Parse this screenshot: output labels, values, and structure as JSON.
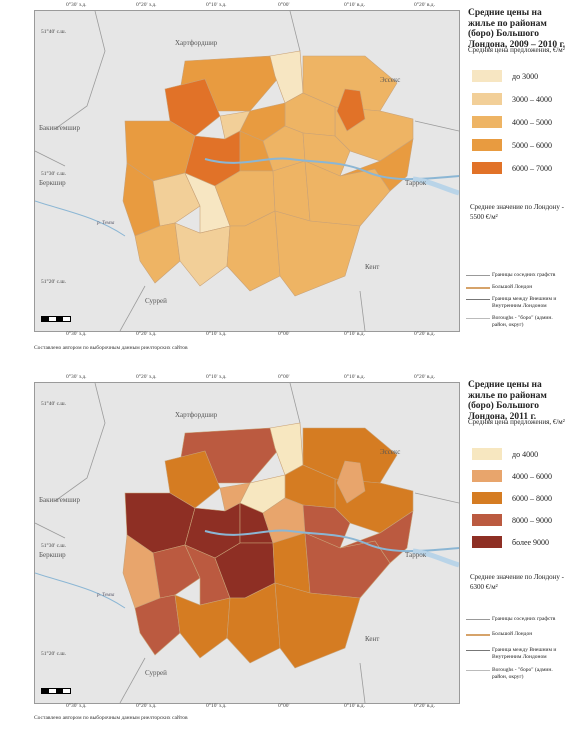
{
  "axes": {
    "top_labels": [
      "0°30' з.д.",
      "0°20' з.д.",
      "0°10' з.д.",
      "0°00'",
      "0°10' в.д.",
      "0°20' в.д."
    ],
    "left_labels_p1": [
      "51°40' с.ш.",
      "51°30' с.ш.",
      "51°20' с.ш."
    ],
    "left_labels_p2": [
      "51°40' с.ш.",
      "51°30' с.ш.",
      "51°20' с.ш."
    ]
  },
  "regions": {
    "hertfordshire": "Хартфордшир",
    "essex": "Эссекс",
    "buckinghamshire": "Бакингемшир",
    "berkshire": "Беркшир",
    "surrey": "Суррей",
    "kent": "Кент",
    "thurrock": "Таррок",
    "thames": "р. Темза"
  },
  "map1": {
    "title": "Средние цены на жилье по районам (боро) Большого Лондона, 2009 – 2010 г.",
    "subtitle": "Средняя цена предложения, €/м²",
    "legend": [
      {
        "label": "до 3000",
        "color": "#f7e6c2"
      },
      {
        "label": "3000 – 4000",
        "color": "#f2cf98"
      },
      {
        "label": "4000 – 5000",
        "color": "#eeb464"
      },
      {
        "label": "5000 – 6000",
        "color": "#e89b40"
      },
      {
        "label": "6000 – 7000",
        "color": "#e17228"
      }
    ],
    "average": "Среднее значение по Лондону - 5500 €/м²",
    "source": "Составлено автором по выборочным данным риелторских сайтов"
  },
  "map2": {
    "title": "Средние цены на жилье по районам (боро) Большого Лондона, 2011 г.",
    "subtitle": "Средняя цена предложения, €/м²",
    "legend": [
      {
        "label": "до 4000",
        "color": "#f7e7c0"
      },
      {
        "label": "4000 – 6000",
        "color": "#e8a56c"
      },
      {
        "label": "6000 – 8000",
        "color": "#d57c22"
      },
      {
        "label": "8000 – 9000",
        "color": "#bb5a40"
      },
      {
        "label": "более 9000",
        "color": "#8e2f24"
      }
    ],
    "average": "Среднее значение по Лондону - 6300 €/м²",
    "source": "Составлено автором по выборочным данным риелторских сайтов"
  },
  "line_legend": {
    "neighbors": "Границы соседних графств",
    "greater_london": "Большой Лондон",
    "inner_outer": "Граница между Внешним и Внутренним Лондоном",
    "boroughs": "Boroughs - \"боро\" (админ. район, округ)"
  }
}
